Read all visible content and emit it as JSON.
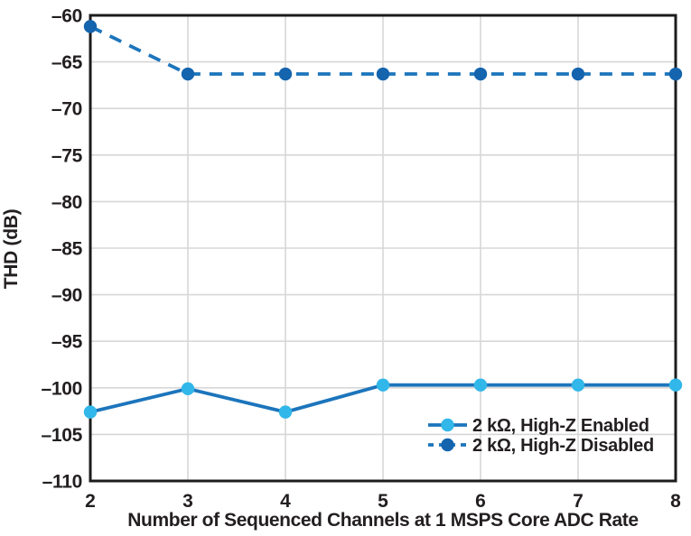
{
  "chart_data": {
    "type": "line",
    "title": "",
    "xlabel": "Number of Sequenced Channels at 1 MSPS Core ADC Rate",
    "ylabel": "THD (dB)",
    "x": [
      2,
      3,
      4,
      5,
      6,
      7,
      8
    ],
    "xlim": [
      2,
      8
    ],
    "ylim": [
      -110,
      -60
    ],
    "yticks": [
      -60,
      -65,
      -70,
      -75,
      -80,
      -85,
      -90,
      -95,
      -100,
      -105,
      -110
    ],
    "grid": true,
    "legend_position": "lower right",
    "series": [
      {
        "name": "2 kΩ, High-Z Enabled",
        "style": "solid",
        "line_color": "#1c75bc",
        "marker_color": "#31b7e9",
        "values": [
          -102.6,
          -100.1,
          -102.6,
          -99.7,
          -99.7,
          -99.7,
          -99.7
        ]
      },
      {
        "name": "2 kΩ, High-Z Disabled",
        "style": "dashed",
        "line_color": "#1c75bc",
        "marker_color": "#1464ae",
        "values": [
          -61.2,
          -66.3,
          -66.3,
          -66.3,
          -66.3,
          -66.3,
          -66.3
        ]
      }
    ]
  },
  "colors": {
    "text": "#231f20",
    "grid": "#d7d7d7",
    "frame": "#1c1c1c",
    "background": "#ffffff"
  }
}
